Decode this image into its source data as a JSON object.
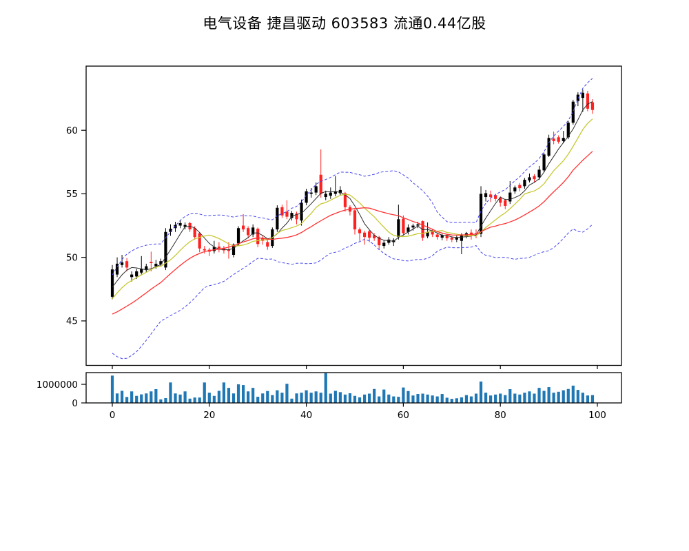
{
  "title": "电气设备  捷昌驱动  603583  流通0.44亿股",
  "colors": {
    "up_candle": "#000000",
    "down_candle": "#ff2020",
    "ma_fast": "#2b2b2b",
    "ma_mid": "#c8c832",
    "ma_slow": "#ff3232",
    "band": "#4444ee",
    "volume_bar": "#1f77b4",
    "axis": "#000000",
    "background": "#ffffff"
  },
  "price_axis": {
    "tick_labels": [
      "45",
      "50",
      "55",
      "60"
    ],
    "tick_values": [
      45,
      50,
      55,
      60
    ]
  },
  "volume_axis": {
    "tick_labels": [
      "1000000",
      "0"
    ],
    "tick_values": [
      1000000,
      0
    ]
  },
  "x_axis": {
    "tick_labels": [
      "0",
      "20",
      "40",
      "60",
      "80",
      "100"
    ],
    "tick_values": [
      0,
      20,
      40,
      60,
      80,
      100
    ]
  },
  "chart_data": {
    "type": "candlestick+volume",
    "title": "电气设备  捷昌驱动  603583  流通0.44亿股",
    "xlabel": "",
    "ylabel": "",
    "price_ylim": [
      41.5,
      65.05
    ],
    "volume_ylim": [
      0,
      1630000
    ],
    "xlim": [
      -5.4,
      105.0
    ],
    "grid": false,
    "legend": false,
    "candle_up_color_rule": "close >= open -> black filled, else red filled",
    "x": [
      0,
      1,
      2,
      3,
      4,
      5,
      6,
      7,
      8,
      9,
      10,
      11,
      12,
      13,
      14,
      15,
      16,
      17,
      18,
      19,
      20,
      21,
      22,
      23,
      24,
      25,
      26,
      27,
      28,
      29,
      30,
      31,
      32,
      33,
      34,
      35,
      36,
      37,
      38,
      39,
      40,
      41,
      42,
      43,
      44,
      45,
      46,
      47,
      48,
      49,
      50,
      51,
      52,
      53,
      54,
      55,
      56,
      57,
      58,
      59,
      60,
      61,
      62,
      63,
      64,
      65,
      66,
      67,
      68,
      69,
      70,
      71,
      72,
      73,
      74,
      75,
      76,
      77,
      78,
      79,
      80,
      81,
      82,
      83,
      84,
      85,
      86,
      87,
      88,
      89,
      90,
      91,
      92,
      93,
      94,
      95,
      96,
      97,
      98,
      99
    ],
    "open": [
      46.9,
      48.65,
      49.4,
      49.7,
      48.45,
      48.5,
      48.8,
      49.0,
      49.65,
      49.3,
      49.45,
      49.2,
      52.0,
      52.3,
      52.5,
      52.4,
      52.7,
      52.3,
      51.9,
      50.65,
      50.6,
      50.5,
      50.85,
      50.75,
      50.6,
      50.2,
      51.1,
      52.5,
      52.3,
      51.8,
      52.25,
      51.55,
      51.2,
      50.9,
      52.2,
      53.95,
      53.6,
      53.1,
      53.45,
      52.9,
      54.3,
      55.0,
      55.1,
      56.5,
      54.75,
      54.85,
      55.0,
      55.05,
      55.05,
      53.95,
      53.7,
      52.2,
      51.95,
      52.05,
      51.75,
      51.6,
      50.9,
      51.15,
      51.2,
      51.6,
      53.05,
      52.0,
      52.35,
      52.5,
      52.85,
      51.65,
      52.1,
      51.8,
      51.55,
      51.7,
      51.55,
      51.4,
      51.3,
      51.7,
      51.95,
      51.9,
      51.85,
      54.75,
      54.95,
      54.9,
      54.7,
      54.5,
      54.4,
      55.2,
      55.7,
      55.6,
      56.05,
      56.4,
      56.3,
      56.85,
      58.0,
      59.35,
      59.45,
      59.15,
      59.45,
      60.6,
      62.3,
      62.55,
      62.9,
      62.2
    ],
    "high": [
      49.4,
      50.0,
      50.2,
      49.95,
      48.9,
      49.1,
      50.1,
      49.5,
      50.45,
      49.8,
      49.9,
      52.3,
      52.6,
      52.8,
      52.95,
      52.75,
      52.8,
      52.45,
      52.0,
      50.9,
      50.75,
      51.3,
      51.2,
      50.9,
      51.2,
      51.1,
      52.45,
      53.4,
      52.45,
      52.6,
      52.35,
      51.75,
      51.35,
      52.35,
      54.1,
      54.15,
      54.5,
      53.65,
      53.6,
      54.55,
      55.4,
      55.45,
      55.9,
      58.5,
      55.25,
      55.5,
      56.4,
      55.6,
      55.15,
      54.1,
      53.8,
      52.35,
      52.1,
      52.15,
      51.9,
      51.7,
      51.35,
      51.6,
      51.5,
      54.15,
      53.3,
      52.6,
      52.65,
      52.8,
      52.9,
      52.75,
      52.25,
      51.95,
      51.85,
      51.8,
      51.65,
      51.7,
      51.9,
      52.0,
      52.2,
      52.2,
      55.6,
      55.3,
      55.25,
      55.0,
      54.8,
      54.6,
      56.0,
      55.65,
      55.85,
      56.25,
      56.6,
      56.55,
      57.2,
      58.25,
      59.65,
      59.9,
      59.6,
      59.95,
      60.75,
      62.4,
      63.0,
      63.2,
      63.1,
      62.45
    ],
    "low": [
      46.7,
      48.45,
      49.2,
      48.9,
      48.1,
      48.3,
      48.6,
      48.8,
      48.9,
      49.1,
      49.3,
      49.0,
      51.7,
      52.0,
      52.3,
      52.2,
      52.0,
      51.4,
      50.4,
      50.3,
      50.1,
      50.3,
      50.4,
      50.3,
      49.9,
      50.0,
      50.9,
      52.0,
      51.5,
      51.6,
      50.8,
      51.0,
      50.6,
      50.75,
      52.0,
      53.1,
      53.0,
      52.9,
      52.6,
      52.5,
      54.1,
      54.7,
      54.9,
      54.7,
      54.5,
      54.6,
      54.8,
      54.9,
      53.6,
      53.3,
      51.8,
      51.3,
      51.0,
      51.2,
      51.3,
      50.6,
      50.7,
      51.0,
      50.9,
      51.4,
      51.7,
      51.8,
      52.1,
      52.3,
      51.3,
      51.5,
      51.6,
      51.4,
      51.35,
      51.3,
      51.2,
      51.2,
      50.25,
      51.5,
      51.4,
      51.5,
      51.6,
      54.4,
      54.35,
      54.4,
      54.0,
      53.8,
      54.2,
      55.0,
      55.2,
      55.4,
      55.9,
      55.9,
      56.1,
      56.7,
      57.9,
      58.9,
      58.95,
      59.0,
      59.3,
      60.45,
      61.9,
      61.45,
      61.5,
      61.3
    ],
    "close": [
      49.05,
      49.5,
      49.6,
      49.2,
      48.65,
      48.9,
      49.1,
      49.3,
      49.55,
      49.5,
      49.7,
      52.0,
      52.25,
      52.55,
      52.7,
      52.55,
      52.2,
      51.6,
      50.7,
      50.55,
      50.45,
      50.8,
      50.7,
      50.55,
      50.5,
      51.0,
      52.3,
      52.2,
      51.75,
      52.35,
      51.05,
      51.3,
      50.85,
      52.2,
      53.9,
      53.3,
      53.2,
      53.5,
      53.0,
      54.3,
      55.2,
      55.1,
      55.6,
      55.0,
      55.0,
      55.1,
      55.2,
      55.3,
      53.95,
      53.6,
      52.2,
      51.9,
      51.6,
      51.55,
      51.5,
      50.95,
      51.15,
      51.4,
      51.35,
      53.0,
      51.9,
      52.35,
      52.5,
      52.6,
      51.55,
      52.0,
      51.8,
      51.6,
      51.75,
      51.5,
      51.4,
      51.55,
      51.8,
      51.9,
      51.75,
      51.8,
      55.0,
      55.05,
      54.75,
      54.6,
      54.3,
      54.05,
      55.1,
      55.5,
      55.45,
      56.1,
      56.3,
      56.15,
      56.9,
      58.1,
      59.4,
      59.15,
      59.1,
      59.4,
      60.6,
      62.25,
      62.8,
      62.95,
      61.7,
      61.6
    ],
    "volume": [
      1470000,
      510000,
      650000,
      320000,
      620000,
      380000,
      460000,
      510000,
      620000,
      740000,
      190000,
      260000,
      1100000,
      510000,
      450000,
      620000,
      230000,
      290000,
      290000,
      1100000,
      550000,
      380000,
      650000,
      1100000,
      810000,
      510000,
      1000000,
      960000,
      620000,
      810000,
      330000,
      510000,
      640000,
      420000,
      680000,
      550000,
      1030000,
      230000,
      510000,
      550000,
      680000,
      550000,
      620000,
      550000,
      1600000,
      500000,
      650000,
      580000,
      450000,
      520000,
      380000,
      300000,
      450000,
      500000,
      750000,
      350000,
      720000,
      450000,
      350000,
      330000,
      830000,
      640000,
      400000,
      480000,
      500000,
      450000,
      400000,
      350000,
      480000,
      280000,
      220000,
      250000,
      300000,
      420000,
      350000,
      500000,
      1150000,
      550000,
      400000,
      450000,
      500000,
      420000,
      740000,
      500000,
      450000,
      550000,
      620000,
      500000,
      810000,
      650000,
      850000,
      550000,
      600000,
      680000,
      750000,
      930000,
      700000,
      550000,
      400000,
      420000
    ],
    "lines": [
      {
        "name": "ma_fast",
        "window": 5,
        "color": "#2b2b2b",
        "style": "solid"
      },
      {
        "name": "ma_mid",
        "window": 10,
        "color": "#c8c832",
        "style": "solid"
      },
      {
        "name": "ma_slow",
        "window": 20,
        "color": "#ff3232",
        "style": "solid"
      },
      {
        "name": "bollinger_upper",
        "window": 20,
        "k": 2,
        "color": "#4444ee",
        "style": "dashed"
      },
      {
        "name": "bollinger_lower",
        "window": 20,
        "k": -2,
        "color": "#4444ee",
        "style": "dashed"
      }
    ],
    "indicator_seed_closes": [
      46.5,
      46.0,
      45.2,
      44.6,
      44.0,
      43.8,
      43.5,
      43.6,
      43.8,
      44.2,
      44.6,
      45.0,
      45.4,
      45.9,
      46.3,
      46.6,
      47.0,
      47.2,
      47.4,
      47.6
    ]
  }
}
